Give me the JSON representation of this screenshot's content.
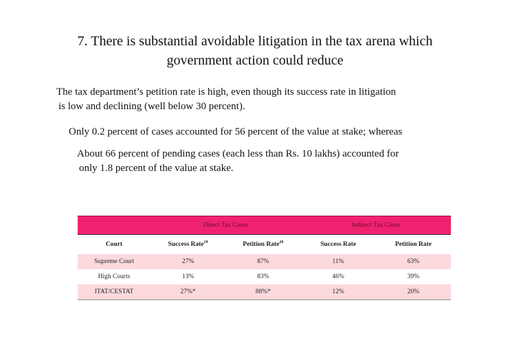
{
  "title": {
    "line1": "7.  There is substantial avoidable litigation in the tax arena which",
    "line2": "government action could reduce"
  },
  "paragraphs": {
    "p1_line1": "The tax department’s petition rate is high, even though its success rate in litigation",
    "p1_line2": "is low and declining (well below 30 percent).",
    "p2": "Only 0.2 percent of cases accounted for 56 percent of the value at stake; whereas",
    "p3_line1": "About 66 percent of pending cases (each less than Rs. 10 lakhs) accounted for",
    "p3_line2": "only 1.8 percent of the value at stake."
  },
  "table": {
    "group_direct": "Direct Tax Cases",
    "group_indirect": "Indirect Tax Cases",
    "col_court": "Court",
    "col_success_direct": "Success Rate",
    "col_success_direct_note": "19",
    "col_petition_direct": "Petition Rate",
    "col_petition_direct_note": "20",
    "col_success_indirect": "Success Rate",
    "col_petition_indirect": "Petition Rate",
    "rows": [
      [
        "Supreme Court",
        "27%",
        "87%",
        "11%",
        "63%"
      ],
      [
        "High Courts",
        "13%",
        "83%",
        "46%",
        "39%"
      ],
      [
        "ITAT/CESTAT",
        "27%*",
        "88%*",
        "12%",
        "20%"
      ]
    ]
  },
  "colors": {
    "header_band": "#f0226f",
    "row_shade": "#fcd9dd"
  }
}
